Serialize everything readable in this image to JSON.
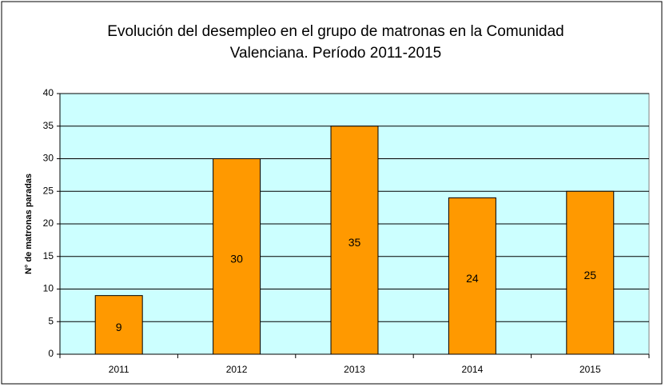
{
  "chart_data": {
    "type": "bar",
    "title": "Evolución del desempleo en el grupo de matronas en la Comunidad Valenciana. Período 2011-2015",
    "y_label": "N° de matronas paradas",
    "categories": [
      "2011",
      "2012",
      "2013",
      "2014",
      "2015"
    ],
    "values": [
      9,
      30,
      35,
      24,
      25
    ],
    "color": "#ff9900",
    "plot_background": "#ccffff",
    "ylim": [
      0,
      40
    ],
    "yticks": [
      0,
      5,
      10,
      15,
      20,
      25,
      30,
      35,
      40
    ],
    "grid": true
  }
}
